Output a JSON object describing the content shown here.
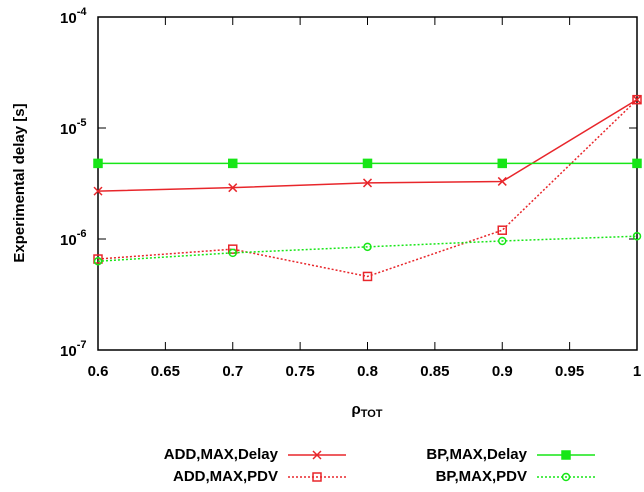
{
  "chart_data": {
    "type": "line",
    "x_label": "ρTOT",
    "y_label": "Experimental delay [s]",
    "x": [
      0.6,
      0.7,
      0.8,
      0.9,
      1
    ],
    "xlim": [
      0.6,
      1
    ],
    "xticks": [
      0.6,
      0.65,
      0.7,
      0.75,
      0.8,
      0.85,
      0.9,
      0.95,
      1
    ],
    "ylim": [
      1e-07,
      0.0001
    ],
    "yticks": [
      {
        "value": 1e-07,
        "label": "10-7"
      },
      {
        "value": 1e-06,
        "label": "10-6"
      },
      {
        "value": 1e-05,
        "label": "10-5"
      },
      {
        "value": 0.0001,
        "label": "10-4"
      }
    ],
    "log_y": true,
    "grid": false,
    "legend": "bottom",
    "series": [
      {
        "name": "ADD,MAX,Delay",
        "color": "#e8262b",
        "marker": "x",
        "dash": false,
        "values": [
          2.7e-06,
          2.9e-06,
          3.2e-06,
          3.3e-06,
          1.8e-05
        ]
      },
      {
        "name": "ADD,MAX,PDV",
        "color": "#e8262b",
        "marker": "open-square",
        "dash": true,
        "values": [
          6.6e-07,
          8.1e-07,
          4.6e-07,
          1.2e-06,
          1.8e-05
        ]
      },
      {
        "name": "BP,MAX,Delay",
        "color": "#17e617",
        "marker": "filled-square",
        "dash": false,
        "values": [
          4.8e-06,
          4.8e-06,
          4.8e-06,
          4.8e-06,
          4.8e-06
        ]
      },
      {
        "name": "BP,MAX,PDV",
        "color": "#17e617",
        "marker": "open-circle",
        "dash": true,
        "values": [
          6.3e-07,
          7.5e-07,
          8.5e-07,
          9.6e-07,
          1.06e-06
        ]
      }
    ]
  }
}
